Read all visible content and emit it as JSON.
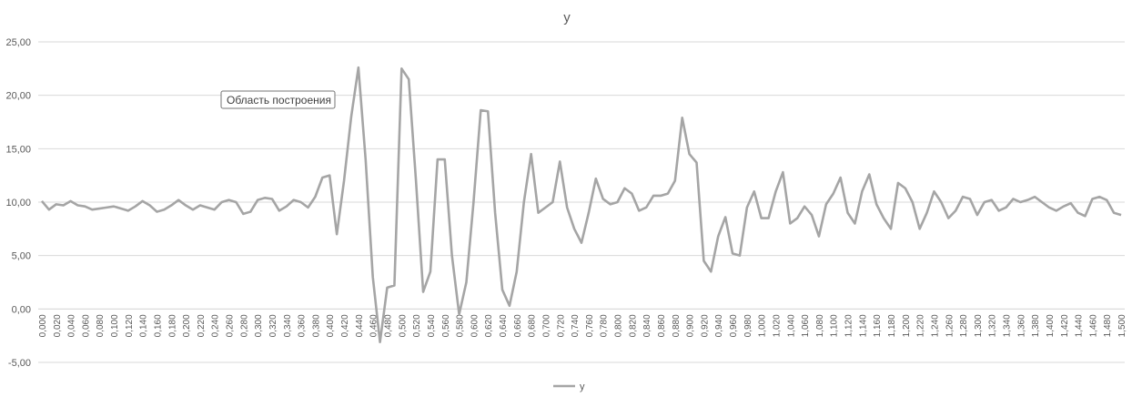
{
  "chart_data": {
    "type": "line",
    "title": "y",
    "tooltip": "Область построения",
    "categories": [
      "0,000",
      null,
      "0,020",
      null,
      "0,040",
      null,
      "0,060",
      null,
      "0,080",
      null,
      "0,100",
      null,
      "0,120",
      null,
      "0,140",
      null,
      "0,160",
      null,
      "0,180",
      null,
      "0,200",
      null,
      "0,220",
      null,
      "0,240",
      null,
      "0,260",
      null,
      "0,280",
      null,
      "0,300",
      null,
      "0,320",
      null,
      "0,340",
      null,
      "0,360",
      null,
      "0,380",
      null,
      "0,400",
      null,
      "0,420",
      null,
      "0,440",
      null,
      "0,460",
      null,
      "0,480",
      null,
      "0,500",
      null,
      "0,520",
      null,
      "0,540",
      null,
      "0,560",
      null,
      "0,580",
      null,
      "0,600",
      null,
      "0,620",
      null,
      "0,640",
      null,
      "0,660",
      null,
      "0,680",
      null,
      "0,700",
      null,
      "0,720",
      null,
      "0,740",
      null,
      "0,760",
      null,
      "0,780",
      null,
      "0,800",
      null,
      "0,820",
      null,
      "0,840",
      null,
      "0,860",
      null,
      "0,880",
      null,
      "0,900",
      null,
      "0,920",
      null,
      "0,940",
      null,
      "0,960",
      null,
      "0,980",
      null,
      "1,000",
      null,
      "1,020",
      null,
      "1,040",
      null,
      "1,060",
      null,
      "1,080",
      null,
      "1,100",
      null,
      "1,120",
      null,
      "1,140",
      null,
      "1,160",
      null,
      "1,180",
      null,
      "1,200",
      null,
      "1,220",
      null,
      "1,240",
      null,
      "1,260",
      null,
      "1,280",
      null,
      "1,300",
      null,
      "1,320",
      null,
      "1,340",
      null,
      "1,360",
      null,
      "1,380",
      null,
      "1,400",
      null,
      "1,420",
      null,
      "1,440",
      null,
      "1,460",
      null,
      "1,480",
      null,
      "1,500"
    ],
    "series": [
      {
        "name": "y",
        "color": "#a5a5a5",
        "values": [
          10.1,
          9.3,
          9.8,
          9.7,
          10.1,
          9.7,
          9.6,
          9.3,
          9.4,
          9.5,
          9.6,
          9.4,
          9.2,
          9.6,
          10.1,
          9.7,
          9.1,
          9.3,
          9.7,
          10.2,
          9.7,
          9.3,
          9.7,
          9.5,
          9.3,
          10.0,
          10.2,
          10.0,
          8.9,
          9.1,
          10.2,
          10.4,
          10.3,
          9.2,
          9.6,
          10.2,
          10.0,
          9.5,
          10.5,
          12.3,
          12.5,
          7.0,
          12.0,
          18.0,
          22.6,
          14.0,
          3.0,
          -3.1,
          2.0,
          2.2,
          22.5,
          21.5,
          12.0,
          1.6,
          3.5,
          14.0,
          14.0,
          5.0,
          -0.5,
          2.5,
          10.0,
          18.6,
          18.5,
          9.0,
          1.8,
          0.3,
          3.5,
          10.0,
          14.5,
          9.0,
          9.5,
          10.0,
          13.8,
          9.5,
          7.5,
          6.2,
          9.0,
          12.2,
          10.3,
          9.8,
          10.0,
          11.3,
          10.8,
          9.2,
          9.5,
          10.6,
          10.6,
          10.8,
          12.0,
          17.9,
          14.5,
          13.7,
          4.5,
          3.5,
          6.8,
          8.6,
          5.2,
          5.0,
          9.5,
          11.0,
          8.5,
          8.5,
          11.0,
          12.8,
          8.0,
          8.5,
          9.6,
          8.8,
          6.8,
          9.8,
          10.8,
          12.3,
          9.0,
          8.0,
          11.0,
          12.6,
          9.8,
          8.5,
          7.5,
          11.8,
          11.3,
          10.0,
          7.5,
          9.0,
          11.0,
          10.0,
          8.5,
          9.2,
          10.5,
          10.3,
          8.8,
          10.0,
          10.2,
          9.2,
          9.5,
          10.3,
          10.0,
          10.2,
          10.5,
          10.0,
          9.5,
          9.2,
          9.6,
          9.9,
          9.0,
          8.7,
          10.3,
          10.5,
          10.2,
          9.0,
          8.8
        ]
      }
    ],
    "ylim": [
      -5,
      25
    ],
    "yticks": [
      {
        "value": -5,
        "label": "-5,00"
      },
      {
        "value": 0,
        "label": "0,00"
      },
      {
        "value": 5,
        "label": "5,00"
      },
      {
        "value": 10,
        "label": "10,00"
      },
      {
        "value": 15,
        "label": "15,00"
      },
      {
        "value": 20,
        "label": "20,00"
      },
      {
        "value": 25,
        "label": "25,00"
      }
    ],
    "grid": true,
    "legend": "bottom"
  }
}
